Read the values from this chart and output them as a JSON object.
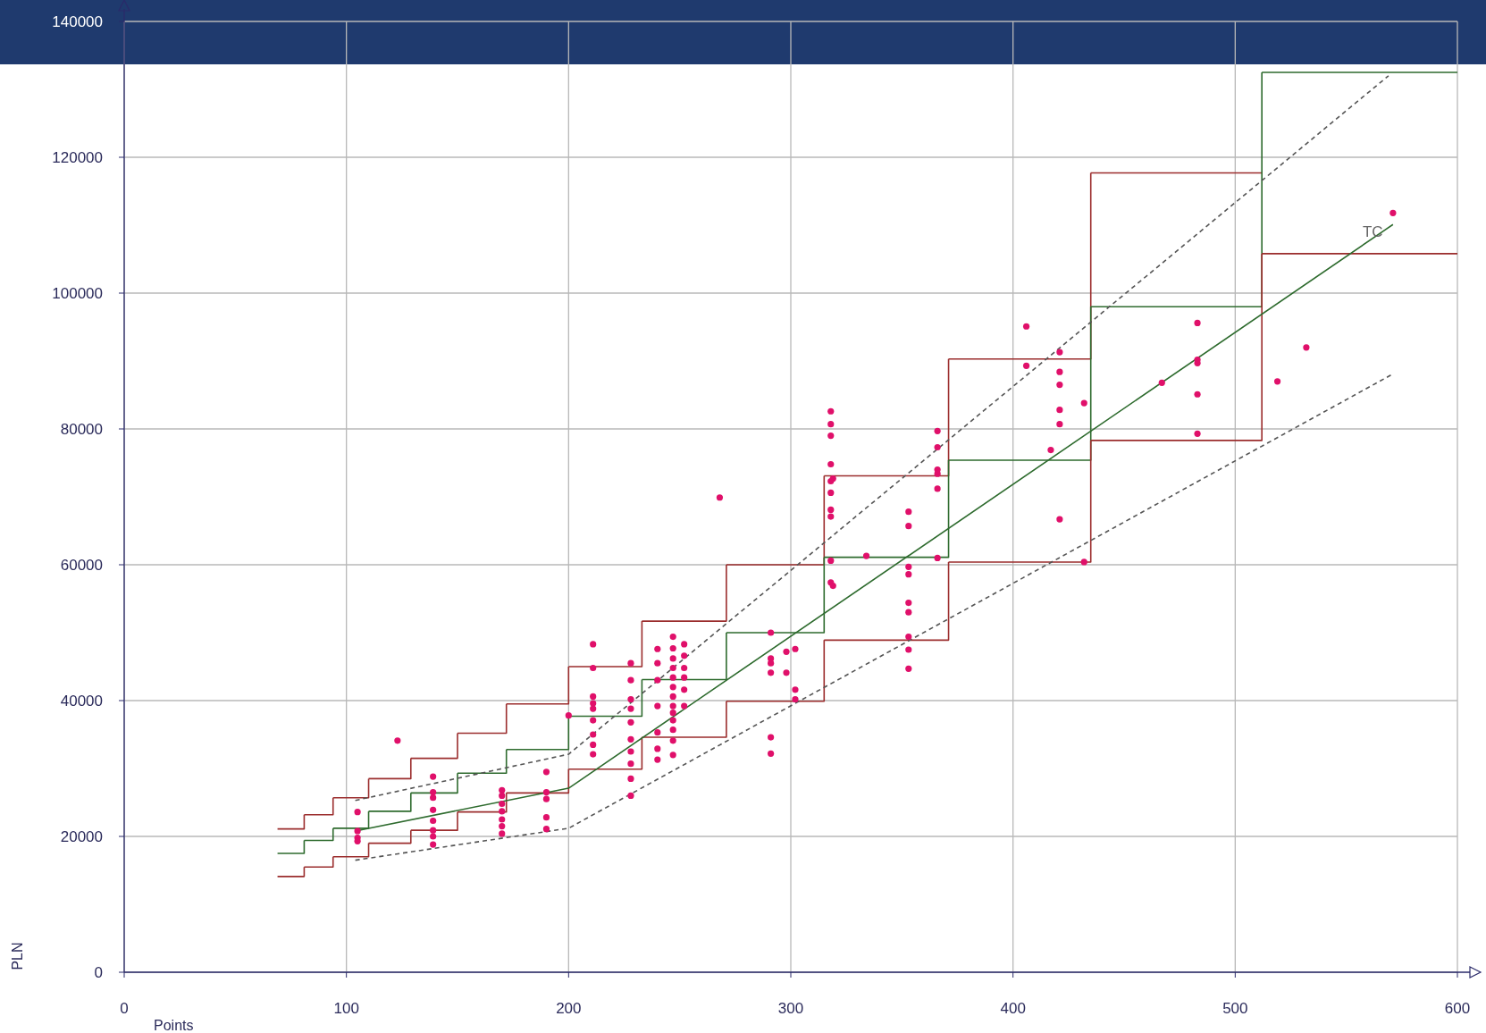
{
  "chart_data": {
    "type": "scatter",
    "xlabel": "Points",
    "ylabel": "PLN",
    "xlim": [
      0,
      600
    ],
    "ylim": [
      0,
      140000
    ],
    "xticks": [
      0,
      100,
      200,
      300,
      400,
      500,
      600
    ],
    "yticks": [
      0,
      20000,
      40000,
      60000,
      80000,
      100000,
      120000,
      140000
    ],
    "grid": true,
    "legend": false,
    "series": [
      {
        "type": "step",
        "color": "#9b2d2d",
        "x": [
          69,
          81,
          94,
          110,
          129,
          150,
          172,
          200,
          233,
          271,
          315,
          371,
          435,
          512
        ],
        "values": [
          21100,
          23200,
          25700,
          28500,
          31500,
          35200,
          39500,
          45000,
          51700,
          60000,
          73100,
          90300,
          117700,
          117700
        ]
      },
      {
        "type": "step",
        "color": "#2e6b2e",
        "x": [
          69,
          81,
          94,
          110,
          129,
          150,
          172,
          200,
          233,
          271,
          315,
          371,
          435,
          512,
          600
        ],
        "values": [
          17500,
          19400,
          21200,
          23700,
          26400,
          29300,
          32800,
          37700,
          43100,
          50000,
          61100,
          75400,
          98000,
          132500,
          132500
        ]
      },
      {
        "type": "step",
        "color": "#9b2d2d",
        "x": [
          69,
          81,
          94,
          110,
          129,
          150,
          172,
          200,
          233,
          271,
          315,
          371,
          435,
          512,
          600
        ],
        "values": [
          14100,
          15500,
          17000,
          19000,
          20900,
          23600,
          26400,
          29900,
          34600,
          39900,
          48900,
          60400,
          78300,
          105800,
          105800
        ]
      },
      {
        "type": "line",
        "name": "TC",
        "color": "#2e6b2e",
        "marker": "none",
        "x": [
          104,
          200,
          571
        ],
        "values": [
          20800,
          27100,
          110100
        ]
      },
      {
        "type": "line",
        "color": "#555555",
        "line_style": "dashed",
        "marker": "none",
        "x": [
          104,
          200,
          569
        ],
        "values": [
          25300,
          32100,
          132000
        ]
      },
      {
        "type": "line",
        "color": "#555555",
        "line_style": "dashed",
        "marker": "none",
        "x": [
          104,
          200,
          571
        ],
        "values": [
          16500,
          21200,
          88100
        ]
      },
      {
        "color": "#e0106a",
        "marker": "circle",
        "x": [
          105,
          105,
          105,
          105,
          123,
          139,
          139,
          139,
          139,
          139,
          139,
          139,
          139,
          170,
          170,
          170,
          170,
          170,
          170,
          170,
          190,
          190,
          190,
          190,
          190,
          200,
          211,
          211,
          211,
          211,
          211,
          211,
          211,
          211,
          211,
          228,
          228,
          228,
          228,
          228,
          228,
          228,
          228,
          228,
          228,
          240,
          240,
          240,
          240,
          240,
          240,
          240,
          247,
          247,
          247,
          247,
          247,
          247,
          247,
          247,
          247,
          247,
          247,
          247,
          247,
          252,
          252,
          252,
          252,
          252,
          252,
          268,
          291,
          291,
          291,
          291,
          291,
          291,
          298,
          298,
          302,
          302,
          302,
          318,
          318,
          318,
          318,
          318,
          318,
          318,
          318,
          318,
          318,
          319,
          319,
          334,
          353,
          353,
          353,
          353,
          353,
          353,
          353,
          353,
          353,
          366,
          366,
          366,
          366,
          366,
          366,
          406,
          406,
          417,
          421,
          421,
          421,
          421,
          421,
          421,
          432,
          432,
          467,
          483,
          483,
          483,
          483,
          483,
          519,
          532,
          571
        ],
        "values": [
          23600,
          20800,
          19800,
          19300,
          34100,
          28800,
          26500,
          25700,
          23900,
          22300,
          20900,
          20000,
          18800,
          26800,
          26000,
          24800,
          23700,
          22500,
          21500,
          20400,
          29500,
          26500,
          25500,
          22800,
          21100,
          37800,
          48300,
          44800,
          40600,
          39600,
          38800,
          37100,
          35000,
          33500,
          32100,
          45500,
          43000,
          40200,
          38800,
          36800,
          34300,
          32500,
          30700,
          28500,
          26000,
          47600,
          45500,
          43000,
          39200,
          35300,
          32900,
          31300,
          49400,
          47700,
          46200,
          44800,
          43400,
          42000,
          40600,
          39200,
          38200,
          37100,
          35700,
          34100,
          32000,
          48300,
          46600,
          44800,
          43400,
          41600,
          39200,
          69900,
          50000,
          46200,
          45500,
          44100,
          34600,
          32200,
          47200,
          44100,
          47600,
          41600,
          40200,
          82600,
          80700,
          79000,
          74800,
          72300,
          70600,
          68100,
          67100,
          60600,
          57400,
          72700,
          56900,
          61300,
          67800,
          65700,
          59700,
          58600,
          54400,
          53000,
          49400,
          47500,
          44700,
          79700,
          77300,
          74000,
          73400,
          71200,
          61000,
          95100,
          89300,
          76900,
          91300,
          88400,
          86500,
          82800,
          80700,
          66700,
          83800,
          60400,
          86800,
          95600,
          90200,
          89700,
          85100,
          79300,
          87000,
          92000,
          111800
        ]
      }
    ]
  }
}
